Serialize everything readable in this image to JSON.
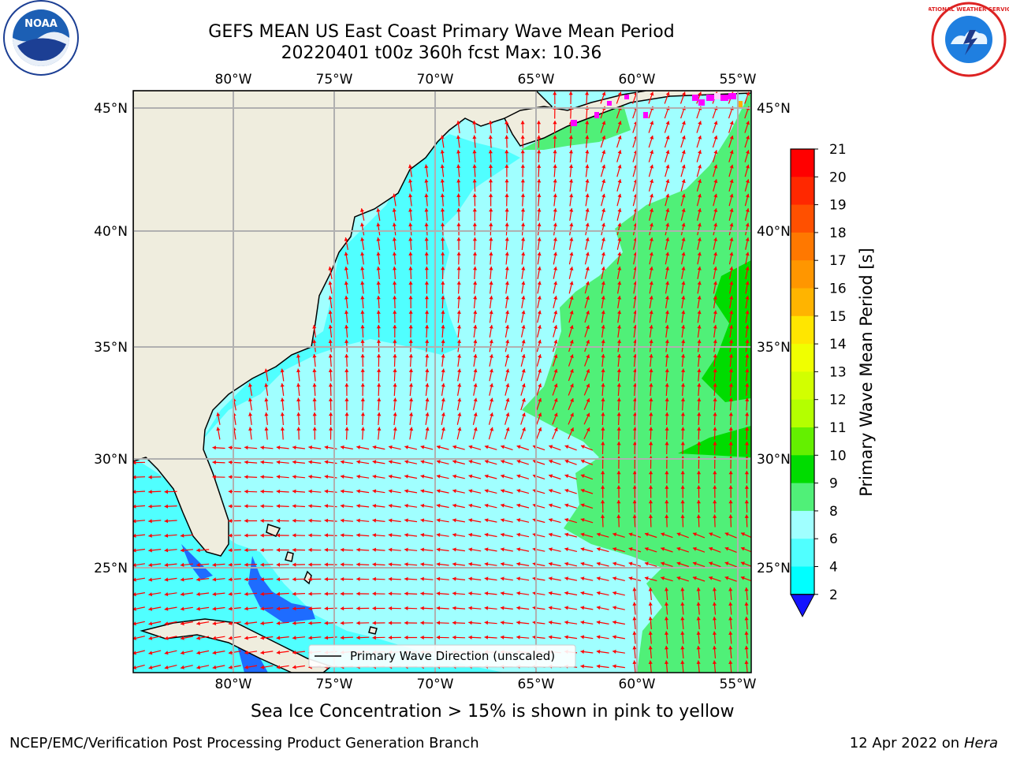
{
  "header": {
    "title_line1": "GEFS MEAN US East Coast Primary Wave Mean Period",
    "title_line2": "20220401 t00z 360h fcst   Max: 10.36",
    "logo_left": "NOAA",
    "logo_right": "NATIONAL WEATHER SERVICE"
  },
  "map": {
    "lon_labels": [
      "80°W",
      "75°W",
      "70°W",
      "65°W",
      "60°W",
      "55°W"
    ],
    "lat_labels": [
      "45°N",
      "40°N",
      "35°N",
      "30°N",
      "25°N"
    ],
    "legend_label": "Primary Wave Direction (unscaled)"
  },
  "colorbar": {
    "label": "Primary Wave Mean Period [s]",
    "ticks": [
      "21",
      "20",
      "19",
      "18",
      "17",
      "16",
      "15",
      "14",
      "13",
      "12",
      "11",
      "10",
      "9",
      "8",
      "6",
      "4",
      "2"
    ],
    "colors": [
      "#ff0000",
      "#ff2800",
      "#ff5000",
      "#ff7800",
      "#ff9600",
      "#ffb400",
      "#ffe600",
      "#f0ff00",
      "#d2ff00",
      "#b4ff00",
      "#64f000",
      "#00dc00",
      "#50f078",
      "#a0ffff",
      "#50ffff",
      "#00ffff",
      "#0096ff",
      "#1414ff"
    ]
  },
  "colors": {
    "land": "#efedde",
    "ocean_light": "#a0ffff",
    "ocean_cyan": "#50ffff",
    "ocean_green": "#50f078",
    "arrow": "#ff0000",
    "grid": "#b0b0b0"
  },
  "footer": {
    "sea_ice_note": "Sea Ice Concentration > 15% is shown in pink to yellow",
    "credit": "NCEP/EMC/Verification Post Processing Product Generation Branch",
    "date_prefix": "12 Apr 2022 on ",
    "date_host": "Hera"
  }
}
